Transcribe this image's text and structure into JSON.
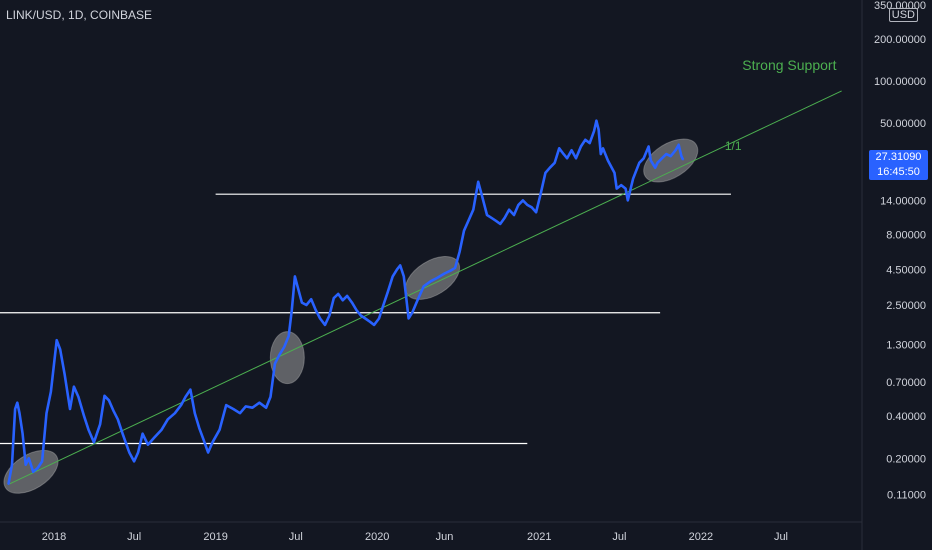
{
  "header": {
    "symbol": "LINK/USD, 1D, COINBASE",
    "currency": "USD"
  },
  "last_price": {
    "value": "27.31090",
    "countdown": "16:45:50",
    "color": "#2962ff"
  },
  "colors": {
    "background": "#131722",
    "price_line": "#2962ff",
    "support_line": "#4caf50",
    "horizontal_line": "#ffffff",
    "ellipse": "#9e9e9e",
    "axis_text": "#d1d4dc"
  },
  "chart_data": {
    "type": "line",
    "y_scale": "log",
    "ylim": [
      0.07,
      380
    ],
    "xlim": [
      "2017-09-01",
      "2022-12-31"
    ],
    "y_ticks": [
      "350.00000",
      "200.00000",
      "100.00000",
      "50.00000",
      "27.31090",
      "14.00000",
      "8.00000",
      "4.50000",
      "2.50000",
      "1.30000",
      "0.70000",
      "0.40000",
      "0.20000",
      "0.11000"
    ],
    "y_tick_values": [
      350,
      200,
      100,
      50,
      27.3109,
      14,
      8,
      4.5,
      2.5,
      1.3,
      0.7,
      0.4,
      0.2,
      0.11
    ],
    "x_ticks": [
      {
        "label": "2018",
        "date": "2018-01-01"
      },
      {
        "label": "Jul",
        "date": "2018-07-01"
      },
      {
        "label": "2019",
        "date": "2019-01-01"
      },
      {
        "label": "Jul",
        "date": "2019-07-01"
      },
      {
        "label": "2020",
        "date": "2020-01-01"
      },
      {
        "label": "Jun",
        "date": "2020-06-01"
      },
      {
        "label": "2021",
        "date": "2021-01-01"
      },
      {
        "label": "Jul",
        "date": "2021-07-01"
      },
      {
        "label": "2022",
        "date": "2022-01-01"
      },
      {
        "label": "Jul",
        "date": "2022-07-01"
      }
    ],
    "series": [
      {
        "color": "#2962ff",
        "points": [
          [
            "2017-09-20",
            0.13
          ],
          [
            "2017-09-28",
            0.18
          ],
          [
            "2017-10-05",
            0.45
          ],
          [
            "2017-10-10",
            0.5
          ],
          [
            "2017-10-15",
            0.42
          ],
          [
            "2017-10-22",
            0.3
          ],
          [
            "2017-10-29",
            0.18
          ],
          [
            "2017-11-05",
            0.2
          ],
          [
            "2017-11-15",
            0.16
          ],
          [
            "2017-11-25",
            0.17
          ],
          [
            "2017-12-05",
            0.19
          ],
          [
            "2017-12-15",
            0.42
          ],
          [
            "2017-12-25",
            0.6
          ],
          [
            "2018-01-07",
            1.4
          ],
          [
            "2018-01-15",
            1.2
          ],
          [
            "2018-01-25",
            0.8
          ],
          [
            "2018-02-06",
            0.45
          ],
          [
            "2018-02-15",
            0.65
          ],
          [
            "2018-02-25",
            0.55
          ],
          [
            "2018-03-10",
            0.4
          ],
          [
            "2018-03-20",
            0.32
          ],
          [
            "2018-04-01",
            0.26
          ],
          [
            "2018-04-15",
            0.35
          ],
          [
            "2018-04-25",
            0.56
          ],
          [
            "2018-05-05",
            0.52
          ],
          [
            "2018-05-15",
            0.44
          ],
          [
            "2018-05-25",
            0.38
          ],
          [
            "2018-06-05",
            0.3
          ],
          [
            "2018-06-20",
            0.22
          ],
          [
            "2018-07-01",
            0.19
          ],
          [
            "2018-07-10",
            0.22
          ],
          [
            "2018-07-20",
            0.3
          ],
          [
            "2018-08-01",
            0.25
          ],
          [
            "2018-08-15",
            0.28
          ],
          [
            "2018-09-01",
            0.32
          ],
          [
            "2018-09-15",
            0.38
          ],
          [
            "2018-10-01",
            0.42
          ],
          [
            "2018-10-15",
            0.48
          ],
          [
            "2018-10-25",
            0.55
          ],
          [
            "2018-11-05",
            0.62
          ],
          [
            "2018-11-15",
            0.42
          ],
          [
            "2018-11-25",
            0.33
          ],
          [
            "2018-12-05",
            0.27
          ],
          [
            "2018-12-15",
            0.22
          ],
          [
            "2018-12-25",
            0.26
          ],
          [
            "2019-01-10",
            0.32
          ],
          [
            "2019-01-25",
            0.48
          ],
          [
            "2019-02-10",
            0.45
          ],
          [
            "2019-02-25",
            0.42
          ],
          [
            "2019-03-10",
            0.47
          ],
          [
            "2019-03-25",
            0.46
          ],
          [
            "2019-04-10",
            0.5
          ],
          [
            "2019-04-25",
            0.46
          ],
          [
            "2019-05-05",
            0.55
          ],
          [
            "2019-05-15",
            0.95
          ],
          [
            "2019-05-25",
            1.1
          ],
          [
            "2019-06-05",
            1.25
          ],
          [
            "2019-06-15",
            1.5
          ],
          [
            "2019-06-22",
            2.3
          ],
          [
            "2019-06-29",
            4.0
          ],
          [
            "2019-07-05",
            3.4
          ],
          [
            "2019-07-15",
            2.6
          ],
          [
            "2019-07-25",
            2.5
          ],
          [
            "2019-08-05",
            2.75
          ],
          [
            "2019-08-15",
            2.3
          ],
          [
            "2019-08-25",
            2.0
          ],
          [
            "2019-09-05",
            1.8
          ],
          [
            "2019-09-15",
            2.1
          ],
          [
            "2019-09-25",
            2.8
          ],
          [
            "2019-10-05",
            3.0
          ],
          [
            "2019-10-15",
            2.7
          ],
          [
            "2019-10-25",
            2.9
          ],
          [
            "2019-11-05",
            2.6
          ],
          [
            "2019-11-15",
            2.3
          ],
          [
            "2019-11-25",
            2.1
          ],
          [
            "2019-12-05",
            2.0
          ],
          [
            "2019-12-15",
            1.9
          ],
          [
            "2019-12-25",
            1.8
          ],
          [
            "2020-01-05",
            2.0
          ],
          [
            "2020-01-15",
            2.5
          ],
          [
            "2020-01-25",
            3.1
          ],
          [
            "2020-02-05",
            4.0
          ],
          [
            "2020-02-15",
            4.5
          ],
          [
            "2020-02-22",
            4.8
          ],
          [
            "2020-03-01",
            4.0
          ],
          [
            "2020-03-12",
            2.0
          ],
          [
            "2020-03-20",
            2.2
          ],
          [
            "2020-04-01",
            2.7
          ],
          [
            "2020-04-15",
            3.4
          ],
          [
            "2020-05-01",
            3.7
          ],
          [
            "2020-05-15",
            3.9
          ],
          [
            "2020-06-01",
            4.2
          ],
          [
            "2020-06-15",
            4.4
          ],
          [
            "2020-06-25",
            4.6
          ],
          [
            "2020-07-05",
            6.0
          ],
          [
            "2020-07-15",
            8.5
          ],
          [
            "2020-07-25",
            10.0
          ],
          [
            "2020-08-05",
            12.0
          ],
          [
            "2020-08-16",
            19.0
          ],
          [
            "2020-08-25",
            15.0
          ],
          [
            "2020-09-05",
            11.0
          ],
          [
            "2020-09-15",
            10.5
          ],
          [
            "2020-09-25",
            10.0
          ],
          [
            "2020-10-05",
            9.5
          ],
          [
            "2020-10-15",
            10.5
          ],
          [
            "2020-10-25",
            12.0
          ],
          [
            "2020-11-05",
            11.0
          ],
          [
            "2020-11-15",
            13.0
          ],
          [
            "2020-11-25",
            14.0
          ],
          [
            "2020-12-05",
            13.0
          ],
          [
            "2020-12-15",
            12.5
          ],
          [
            "2020-12-25",
            11.5
          ],
          [
            "2021-01-05",
            16.0
          ],
          [
            "2021-01-15",
            22.0
          ],
          [
            "2021-01-25",
            24.0
          ],
          [
            "2021-02-05",
            26.0
          ],
          [
            "2021-02-15",
            33.0
          ],
          [
            "2021-02-25",
            30.0
          ],
          [
            "2021-03-05",
            28.0
          ],
          [
            "2021-03-15",
            32.0
          ],
          [
            "2021-03-25",
            28.0
          ],
          [
            "2021-04-05",
            34.0
          ],
          [
            "2021-04-15",
            38.0
          ],
          [
            "2021-04-25",
            36.0
          ],
          [
            "2021-05-05",
            44.0
          ],
          [
            "2021-05-10",
            52.0
          ],
          [
            "2021-05-15",
            45.0
          ],
          [
            "2021-05-20",
            30.0
          ],
          [
            "2021-05-25",
            33.0
          ],
          [
            "2021-06-05",
            27.0
          ],
          [
            "2021-06-20",
            22.0
          ],
          [
            "2021-06-25",
            17.0
          ],
          [
            "2021-07-05",
            18.0
          ],
          [
            "2021-07-15",
            17.0
          ],
          [
            "2021-07-20",
            14.0
          ],
          [
            "2021-08-01",
            20.0
          ],
          [
            "2021-08-15",
            26.0
          ],
          [
            "2021-08-25",
            28.0
          ],
          [
            "2021-09-05",
            34.0
          ],
          [
            "2021-09-10",
            27.0
          ],
          [
            "2021-09-20",
            24.0
          ],
          [
            "2021-09-25",
            26.0
          ],
          [
            "2021-10-05",
            28.0
          ],
          [
            "2021-10-15",
            30.0
          ],
          [
            "2021-10-25",
            29.0
          ],
          [
            "2021-11-05",
            32.0
          ],
          [
            "2021-11-12",
            35.0
          ],
          [
            "2021-11-18",
            29.0
          ],
          [
            "2021-11-22",
            27.3109
          ]
        ]
      }
    ],
    "horizontal_levels": [
      {
        "price": 15.5,
        "from": "2019-01-01",
        "to": "2022-03-10"
      },
      {
        "price": 2.2,
        "from": "2017-08-15",
        "to": "2021-10-01"
      },
      {
        "price": 0.255,
        "from": "2017-07-01",
        "to": "2020-12-05"
      }
    ],
    "support_line": {
      "from": [
        "2017-09-20",
        0.13
      ],
      "to": [
        "2022-11-15",
        85.0
      ]
    },
    "annotations": [
      {
        "text": "Strong Support",
        "date": "2022-07-20",
        "price": 120,
        "color": "#4caf50"
      },
      {
        "text": "1/1",
        "date": "2022-03-15",
        "price": 32,
        "color": "#4caf50"
      }
    ],
    "highlight_ellipses": [
      {
        "date": "2017-11-10",
        "price": 0.16
      },
      {
        "date": "2019-06-12",
        "price": 1.05
      },
      {
        "date": "2020-05-05",
        "price": 3.9
      },
      {
        "date": "2021-10-25",
        "price": 27.0
      }
    ]
  }
}
